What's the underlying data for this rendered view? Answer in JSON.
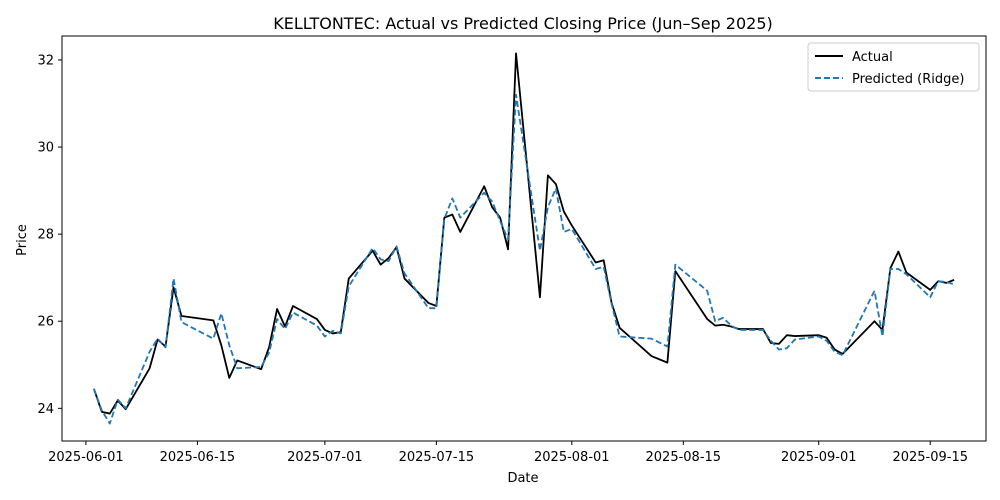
{
  "chart_data": {
    "type": "line",
    "title": "KELLTONTEC: Actual vs Predicted Closing Price (Jun–Sep 2025)",
    "xlabel": "Date",
    "ylabel": "Price",
    "x_ticks": [
      "2025-06-01",
      "2025-06-15",
      "2025-07-01",
      "2025-07-15",
      "2025-08-01",
      "2025-08-15",
      "2025-09-01",
      "2025-09-15"
    ],
    "y_ticks": [
      "24",
      "26",
      "28",
      "30",
      "32"
    ],
    "xlim": [
      "2025-05-29",
      "2025-09-22"
    ],
    "ylim": [
      23.25,
      32.55
    ],
    "grid": false,
    "legend_position": "top-right",
    "x": [
      "2025-06-02",
      "2025-06-03",
      "2025-06-04",
      "2025-06-05",
      "2025-06-06",
      "2025-06-09",
      "2025-06-10",
      "2025-06-11",
      "2025-06-12",
      "2025-06-13",
      "2025-06-17",
      "2025-06-18",
      "2025-06-19",
      "2025-06-20",
      "2025-06-23",
      "2025-06-24",
      "2025-06-25",
      "2025-06-26",
      "2025-06-27",
      "2025-06-30",
      "2025-07-01",
      "2025-07-02",
      "2025-07-03",
      "2025-07-04",
      "2025-07-07",
      "2025-07-08",
      "2025-07-09",
      "2025-07-10",
      "2025-07-11",
      "2025-07-14",
      "2025-07-15",
      "2025-07-16",
      "2025-07-17",
      "2025-07-18",
      "2025-07-21",
      "2025-07-22",
      "2025-07-23",
      "2025-07-24",
      "2025-07-25",
      "2025-07-28",
      "2025-07-29",
      "2025-07-30",
      "2025-07-31",
      "2025-08-01",
      "2025-08-04",
      "2025-08-05",
      "2025-08-06",
      "2025-08-07",
      "2025-08-11",
      "2025-08-13",
      "2025-08-14",
      "2025-08-18",
      "2025-08-19",
      "2025-08-20",
      "2025-08-21",
      "2025-08-22",
      "2025-08-25",
      "2025-08-26",
      "2025-08-27",
      "2025-08-28",
      "2025-08-29",
      "2025-09-01",
      "2025-09-02",
      "2025-09-03",
      "2025-09-04",
      "2025-09-08",
      "2025-09-09",
      "2025-09-10",
      "2025-09-11",
      "2025-09-12",
      "2025-09-15",
      "2025-09-16",
      "2025-09-17",
      "2025-09-18"
    ],
    "series": [
      {
        "name": "Actual",
        "color": "#000000",
        "style": "solid",
        "values": [
          24.45,
          23.92,
          23.88,
          24.18,
          23.98,
          24.92,
          25.58,
          25.42,
          26.78,
          26.12,
          26.02,
          25.45,
          24.7,
          25.1,
          24.9,
          25.4,
          26.28,
          25.88,
          26.35,
          26.05,
          25.8,
          25.72,
          25.75,
          26.98,
          27.62,
          27.3,
          27.45,
          27.7,
          26.98,
          26.42,
          26.35,
          28.38,
          28.45,
          28.05,
          29.1,
          28.62,
          28.38,
          27.65,
          32.15,
          26.55,
          29.35,
          29.15,
          28.52,
          28.2,
          27.35,
          27.4,
          26.42,
          25.85,
          25.2,
          25.05,
          27.15,
          26.05,
          25.9,
          25.92,
          25.88,
          25.82,
          25.82,
          25.5,
          25.48,
          25.68,
          25.66,
          25.68,
          25.62,
          25.35,
          25.25,
          26.0,
          25.8,
          27.22,
          27.6,
          27.12,
          26.72,
          26.92,
          26.88,
          26.95
        ]
      },
      {
        "name": "Predicted (Ridge)",
        "color": "#1f77b4",
        "style": "dashed",
        "values": [
          24.45,
          23.95,
          23.65,
          24.2,
          24.0,
          25.3,
          25.6,
          25.4,
          26.98,
          25.98,
          25.6,
          26.18,
          25.45,
          24.92,
          24.95,
          25.28,
          26.05,
          25.82,
          26.2,
          25.9,
          25.65,
          25.78,
          25.72,
          26.8,
          27.68,
          27.42,
          27.38,
          27.72,
          27.1,
          26.3,
          26.3,
          28.35,
          28.82,
          28.38,
          28.95,
          28.75,
          28.3,
          27.88,
          31.2,
          27.62,
          28.62,
          29.05,
          28.05,
          28.12,
          27.2,
          27.25,
          26.4,
          25.65,
          25.6,
          25.42,
          27.3,
          26.7,
          26.0,
          26.08,
          25.9,
          25.8,
          25.8,
          25.55,
          25.35,
          25.38,
          25.58,
          25.65,
          25.55,
          25.3,
          25.22,
          26.7,
          25.65,
          27.2,
          27.2,
          27.08,
          26.55,
          26.92,
          26.9,
          26.85
        ]
      }
    ]
  }
}
